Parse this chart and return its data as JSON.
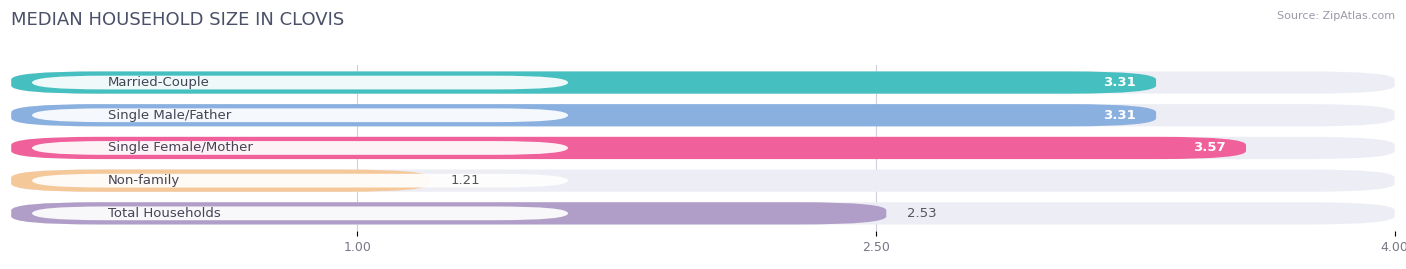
{
  "title": "MEDIAN HOUSEHOLD SIZE IN CLOVIS",
  "source": "Source: ZipAtlas.com",
  "categories": [
    "Married-Couple",
    "Single Male/Father",
    "Single Female/Mother",
    "Non-family",
    "Total Households"
  ],
  "values": [
    3.31,
    3.31,
    3.57,
    1.21,
    2.53
  ],
  "bar_colors": [
    "#45bfbf",
    "#8ab0e0",
    "#f0609a",
    "#f5c89a",
    "#b09ec8"
  ],
  "value_inside": [
    true,
    true,
    true,
    false,
    false
  ],
  "xlim_min": 0,
  "xlim_max": 4.0,
  "xticks": [
    1.0,
    2.5,
    4.0
  ],
  "xtick_labels": [
    "1.00",
    "2.50",
    "4.00"
  ],
  "background_color": "#ffffff",
  "bar_bg_color": "#ededf5",
  "title_fontsize": 13,
  "label_fontsize": 9.5,
  "value_fontsize": 9.5
}
